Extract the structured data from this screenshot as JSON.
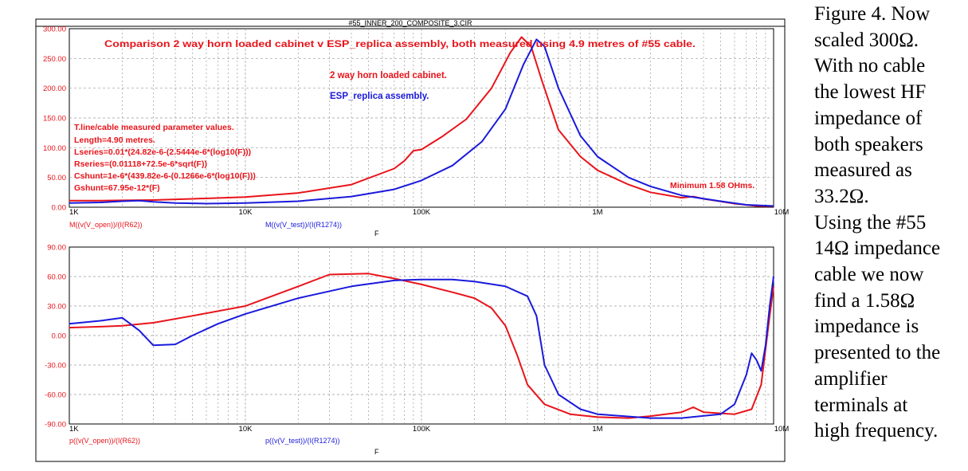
{
  "window_title": "#55_INNER_200_COMPOSITE_3.CIR",
  "caption_lines": [
    "Figure 4. Now",
    "scaled 300Ω.",
    "With no cable",
    "the lowest HF",
    "impedance of",
    "both speakers",
    "measured as",
    "33.2Ω.",
    "Using the #55",
    "14Ω impedance",
    "cable we now",
    "find a 1.58Ω",
    "impedance is",
    "presented to the",
    "amplifier",
    "terminals at",
    "high frequency."
  ],
  "colors": {
    "red": "#e8141b",
    "blue": "#1a1adc",
    "axis_text": "#e8141b",
    "grid": "#9a9a9a",
    "frame": "#000000"
  },
  "chart_data": [
    {
      "type": "line",
      "title": "Comparison 2 way horn loaded cabinet v ESP_replica assembly, both measured using 4.9 metres of #55 cable.",
      "xlabel": "F",
      "x_scale": "log",
      "xlim": [
        1000,
        10000000
      ],
      "x_ticks": [
        1000,
        10000,
        100000,
        1000000,
        10000000
      ],
      "x_tick_labels": [
        "1K",
        "10K",
        "100K",
        "1M",
        "10M"
      ],
      "ylim": [
        0,
        300
      ],
      "y_ticks": [
        0,
        50,
        100,
        150,
        200,
        250,
        300
      ],
      "y_tick_labels": [
        "0.00",
        "50.00",
        "100.00",
        "150.00",
        "200.00",
        "250.00",
        "300.00"
      ],
      "grid": true,
      "annotations": [
        "2 way horn loaded cabinet.",
        "ESP_replica assembly.",
        "Minimum 1.58 OHms."
      ],
      "param_lines": [
        "T.line/cable measured parameter values.",
        "Length=4.90 metres.",
        "Lseries=0.01*(24.82e-6-(2.5444e-6*(log10(F)))",
        "Rseries=(0.01118+72.5e-6*sqrt(F))",
        "Cshunt=1e-6*(439.82e-6-(0.1266e-6*(log10(F)))",
        "Gshunt=67.95e-12*(F)"
      ],
      "trace_labels": [
        "M((v(V_open))/(I(R62))",
        "M((v(V_test))/(I(R1274))"
      ],
      "series": [
        {
          "name": "M((v(V_open))/(I(R62))",
          "color": "#e8141b",
          "points": [
            [
              1000,
              11
            ],
            [
              1500,
              11
            ],
            [
              2000,
              11.5
            ],
            [
              3000,
              12
            ],
            [
              5000,
              14
            ],
            [
              10000,
              17
            ],
            [
              20000,
              24
            ],
            [
              40000,
              38
            ],
            [
              70000,
              65
            ],
            [
              80000,
              78
            ],
            [
              90000,
              95
            ],
            [
              100000,
              97
            ],
            [
              130000,
              118
            ],
            [
              180000,
              148
            ],
            [
              250000,
              200
            ],
            [
              320000,
              260
            ],
            [
              370000,
              286
            ],
            [
              420000,
              270
            ],
            [
              480000,
              215
            ],
            [
              600000,
              130
            ],
            [
              800000,
              85
            ],
            [
              1000000,
              62
            ],
            [
              1500000,
              38
            ],
            [
              2000000,
              25
            ],
            [
              3000000,
              16
            ],
            [
              3500000,
              18
            ],
            [
              4000000,
              14
            ],
            [
              6000000,
              6
            ],
            [
              8000000,
              2
            ],
            [
              10000000,
              1.58
            ]
          ]
        },
        {
          "name": "M((v(V_test))/(I(R1274))",
          "color": "#1a1adc",
          "points": [
            [
              1000,
              7
            ],
            [
              1500,
              8
            ],
            [
              2000,
              10
            ],
            [
              2500,
              11
            ],
            [
              3000,
              9
            ],
            [
              4000,
              7
            ],
            [
              6000,
              6
            ],
            [
              10000,
              7
            ],
            [
              20000,
              10
            ],
            [
              40000,
              18
            ],
            [
              70000,
              30
            ],
            [
              100000,
              45
            ],
            [
              150000,
              70
            ],
            [
              220000,
              110
            ],
            [
              300000,
              165
            ],
            [
              380000,
              240
            ],
            [
              450000,
              282
            ],
            [
              500000,
              270
            ],
            [
              600000,
              200
            ],
            [
              800000,
              120
            ],
            [
              1000000,
              85
            ],
            [
              1500000,
              50
            ],
            [
              2000000,
              35
            ],
            [
              3000000,
              20
            ],
            [
              5000000,
              10
            ],
            [
              7000000,
              4
            ],
            [
              10000000,
              2
            ]
          ]
        }
      ]
    },
    {
      "type": "line",
      "xlabel": "F",
      "x_scale": "log",
      "xlim": [
        1000,
        10000000
      ],
      "x_ticks": [
        1000,
        10000,
        100000,
        1000000,
        10000000
      ],
      "x_tick_labels": [
        "1K",
        "10K",
        "100K",
        "1M",
        "10M"
      ],
      "ylim": [
        -90,
        90
      ],
      "y_ticks": [
        -90,
        -60,
        -30,
        0,
        30,
        60,
        90
      ],
      "y_tick_labels": [
        "-90.00",
        "-60.00",
        "-30.00",
        "0.00",
        "30.00",
        "60.00",
        "90.00"
      ],
      "grid": true,
      "trace_labels": [
        "p((v(V_open))/(I(R62))",
        "p((v(V_test))/(I(R1274))"
      ],
      "series": [
        {
          "name": "p((v(V_open))/(I(R62))",
          "color": "#e8141b",
          "points": [
            [
              1000,
              8
            ],
            [
              1500,
              9
            ],
            [
              2000,
              10
            ],
            [
              3000,
              13
            ],
            [
              5000,
              20
            ],
            [
              10000,
              30
            ],
            [
              20000,
              50
            ],
            [
              30000,
              62
            ],
            [
              50000,
              63
            ],
            [
              70000,
              58
            ],
            [
              100000,
              52
            ],
            [
              150000,
              44
            ],
            [
              200000,
              38
            ],
            [
              250000,
              28
            ],
            [
              300000,
              10
            ],
            [
              350000,
              -20
            ],
            [
              400000,
              -50
            ],
            [
              500000,
              -70
            ],
            [
              700000,
              -80
            ],
            [
              1000000,
              -83
            ],
            [
              1500000,
              -84
            ],
            [
              2000000,
              -82
            ],
            [
              3000000,
              -78
            ],
            [
              3500000,
              -73
            ],
            [
              4000000,
              -78
            ],
            [
              6000000,
              -80
            ],
            [
              7500000,
              -75
            ],
            [
              8500000,
              -50
            ],
            [
              9500000,
              20
            ],
            [
              10000000,
              50
            ]
          ]
        },
        {
          "name": "p((v(V_test))/(I(R1274))",
          "color": "#1a1adc",
          "points": [
            [
              1000,
              12
            ],
            [
              1500,
              15
            ],
            [
              2000,
              18
            ],
            [
              2500,
              5
            ],
            [
              3000,
              -10
            ],
            [
              4000,
              -9
            ],
            [
              5000,
              0
            ],
            [
              7000,
              12
            ],
            [
              10000,
              22
            ],
            [
              20000,
              38
            ],
            [
              40000,
              50
            ],
            [
              70000,
              56
            ],
            [
              100000,
              57
            ],
            [
              150000,
              57
            ],
            [
              200000,
              55
            ],
            [
              300000,
              50
            ],
            [
              400000,
              40
            ],
            [
              450000,
              20
            ],
            [
              500000,
              -30
            ],
            [
              600000,
              -60
            ],
            [
              800000,
              -75
            ],
            [
              1000000,
              -80
            ],
            [
              2000000,
              -84
            ],
            [
              3000000,
              -84
            ],
            [
              5000000,
              -80
            ],
            [
              6000000,
              -70
            ],
            [
              7000000,
              -40
            ],
            [
              7500000,
              -18
            ],
            [
              8000000,
              -25
            ],
            [
              8500000,
              -36
            ],
            [
              9000000,
              -10
            ],
            [
              9500000,
              30
            ],
            [
              10000000,
              60
            ]
          ]
        }
      ]
    }
  ]
}
